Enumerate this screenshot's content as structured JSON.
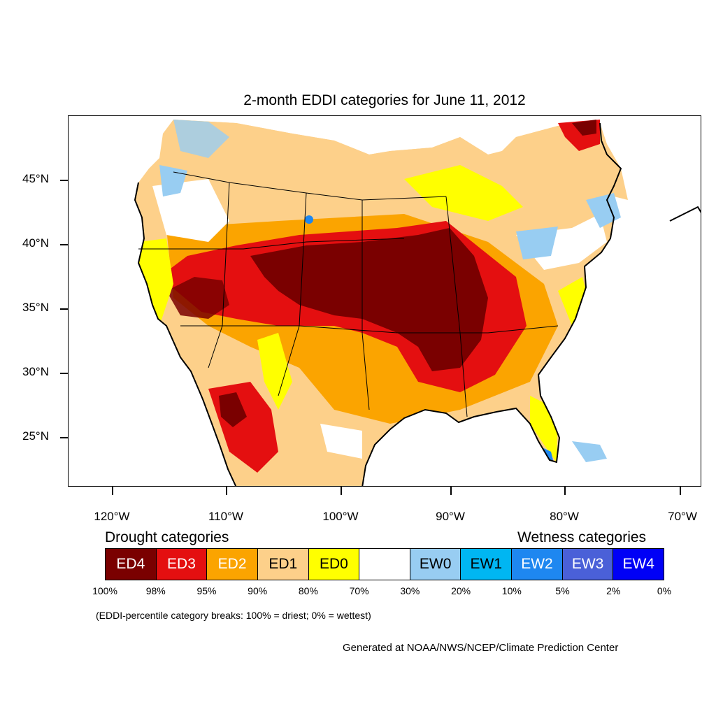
{
  "title": "2-month EDDI categories for June 11, 2012",
  "axes": {
    "lat_ticks": [
      "45°N",
      "40°N",
      "35°N",
      "30°N",
      "25°N"
    ],
    "lon_ticks": [
      "120°W",
      "110°W",
      "100°W",
      "90°W",
      "80°W",
      "70°W"
    ]
  },
  "legend": {
    "drought_heading": "Drought categories",
    "wetness_heading": "Wetness categories",
    "categories": [
      {
        "label": "ED4",
        "color": "#7a0000",
        "text_color": "#ffffff"
      },
      {
        "label": "ED3",
        "color": "#e40f10",
        "text_color": "#ffffff"
      },
      {
        "label": "ED2",
        "color": "#fba400",
        "text_color": "#ffffff"
      },
      {
        "label": "ED1",
        "color": "#fdd08a",
        "text_color": "#000000"
      },
      {
        "label": "ED0",
        "color": "#ffff00",
        "text_color": "#000000"
      },
      {
        "label": "",
        "color": "#ffffff",
        "text_color": "#000000"
      },
      {
        "label": "EW0",
        "color": "#98cdf2",
        "text_color": "#000000"
      },
      {
        "label": "EW1",
        "color": "#00b6f2",
        "text_color": "#000000"
      },
      {
        "label": "EW2",
        "color": "#1e87f0",
        "text_color": "#ffffff"
      },
      {
        "label": "EW3",
        "color": "#4a60d8",
        "text_color": "#ffffff"
      },
      {
        "label": "EW4",
        "color": "#0000f6",
        "text_color": "#ffffff"
      }
    ],
    "percentiles": [
      "100%",
      "98%",
      "95%",
      "90%",
      "80%",
      "70%",
      "30%",
      "20%",
      "10%",
      "5%",
      "2%",
      "0%"
    ]
  },
  "note": "(EDDI-percentile category breaks: 100% = driest; 0% = wettest)",
  "credit": "Generated at NOAA/NWS/NCEP/Climate Prediction Center"
}
